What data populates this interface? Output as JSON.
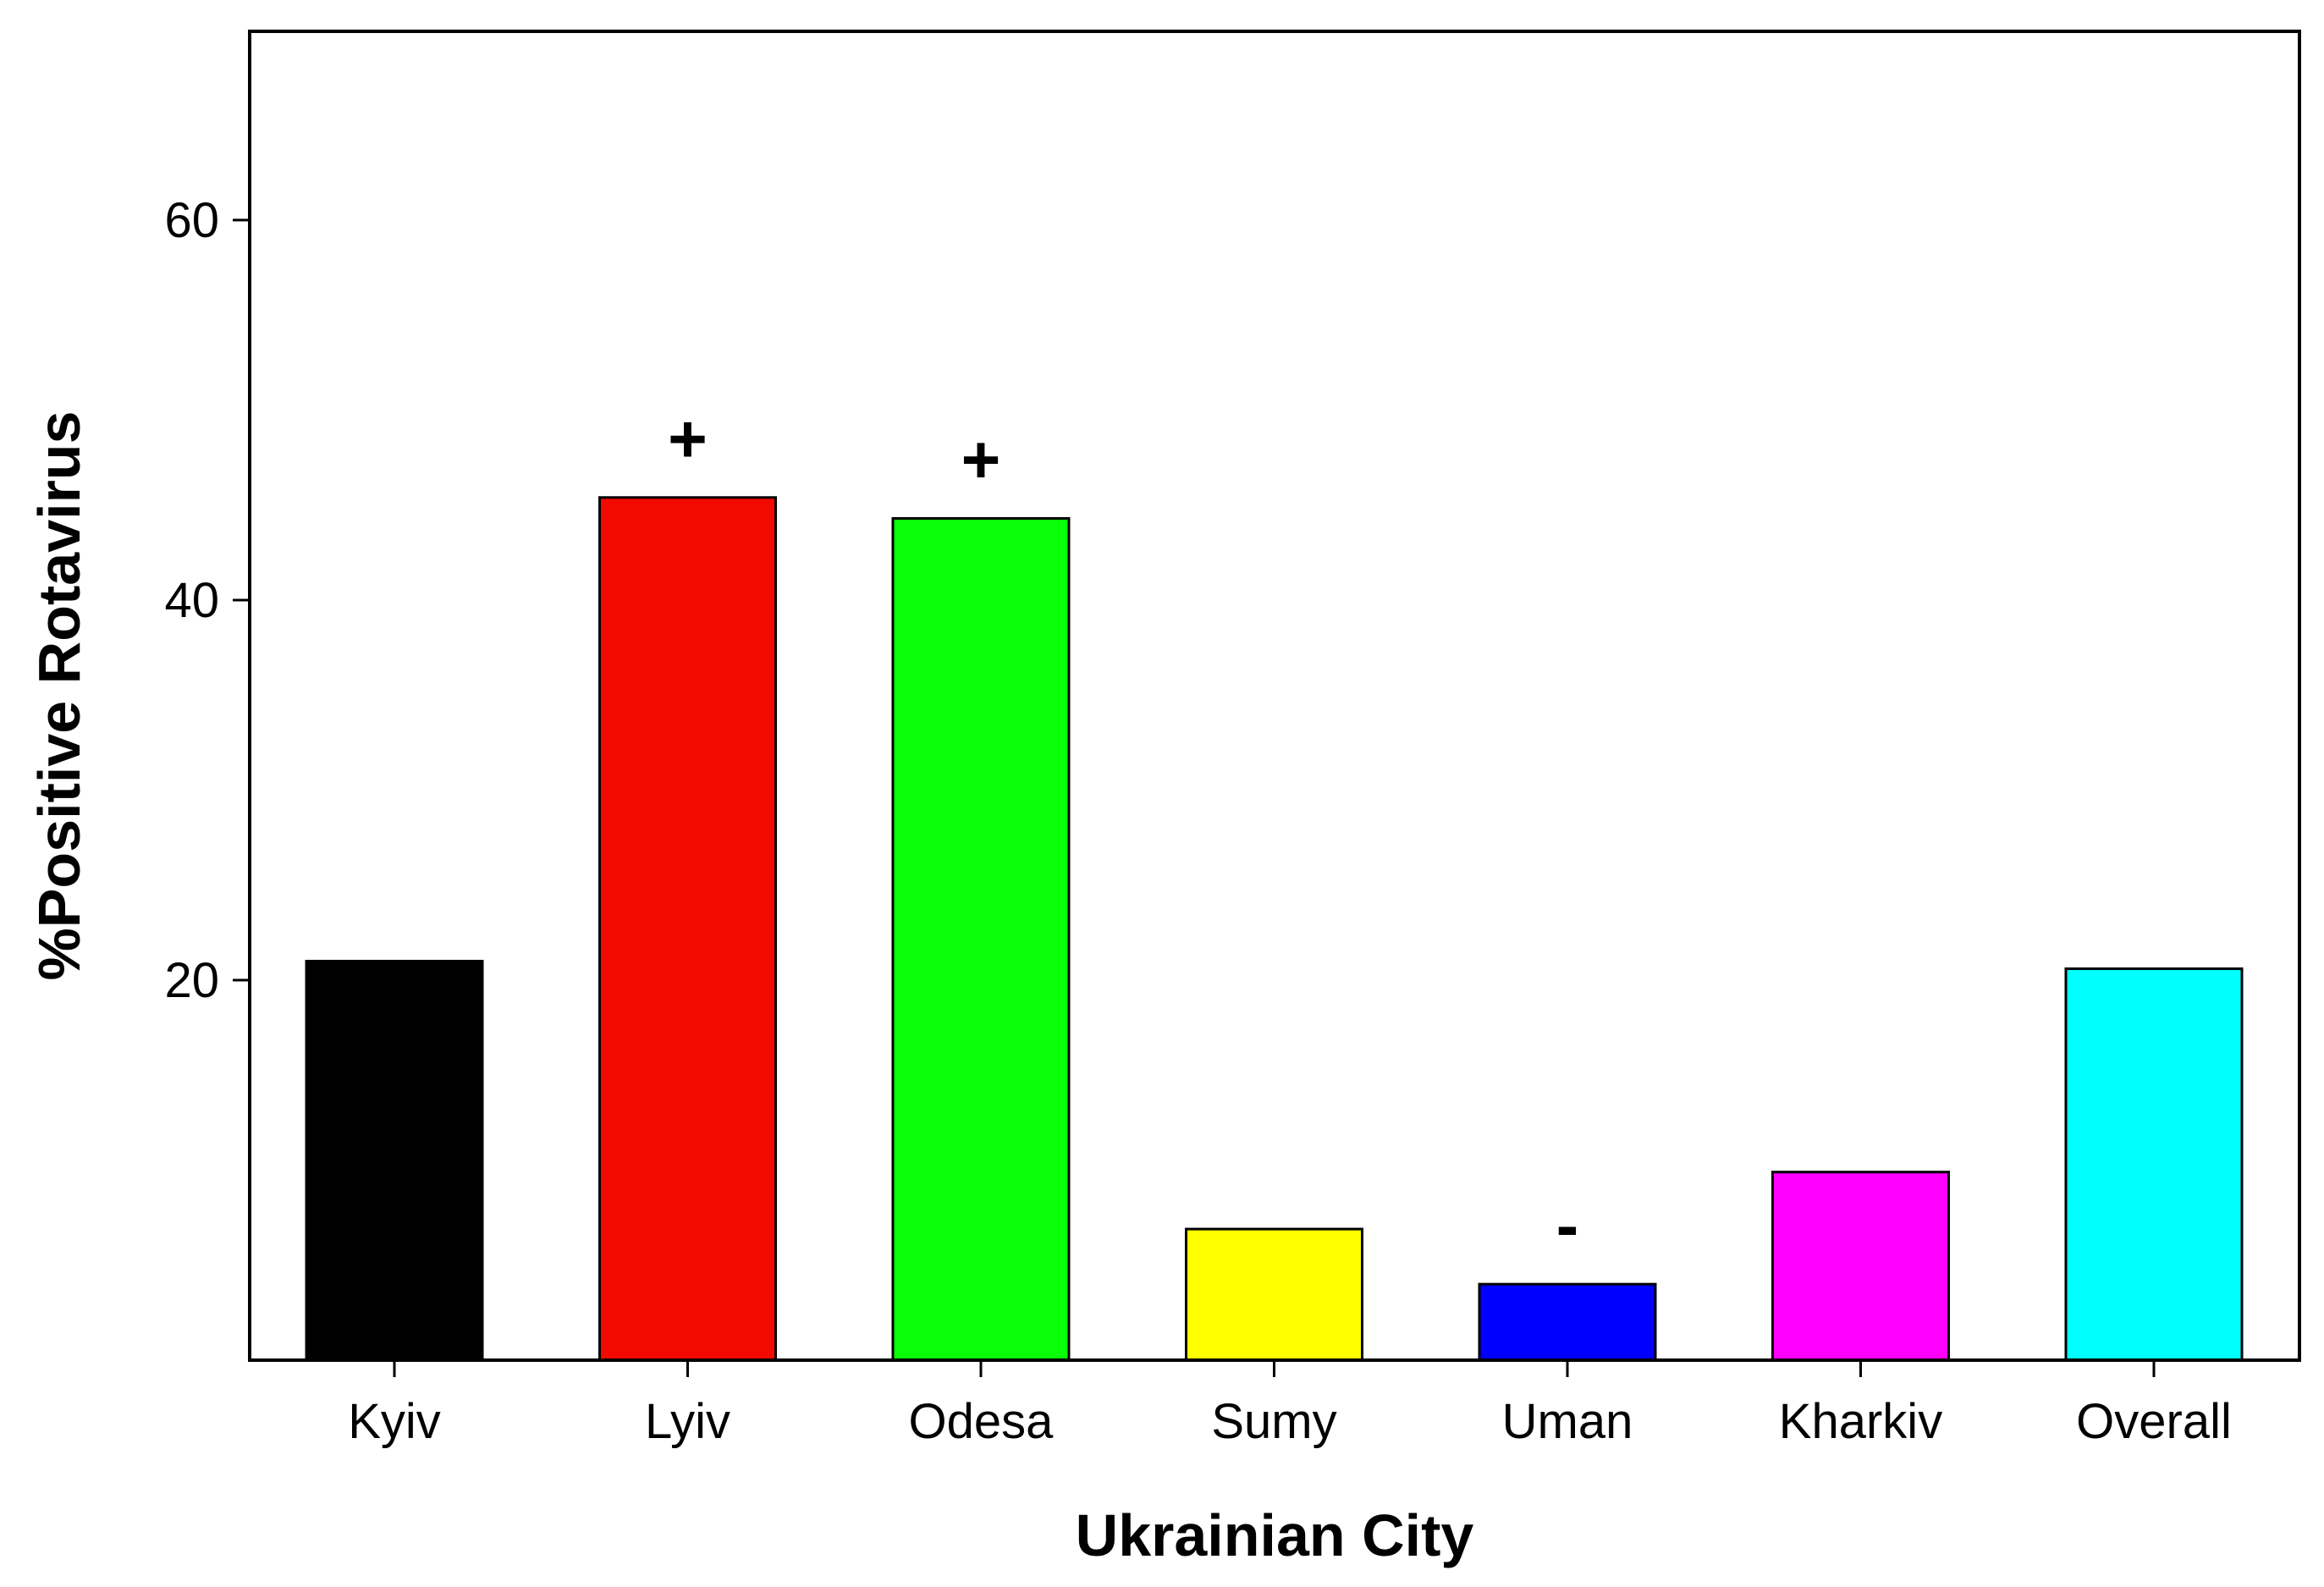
{
  "chart_data": {
    "type": "bar",
    "title": "",
    "xlabel": "Ukrainian City",
    "ylabel": "%Positive Rotavirus",
    "ylim": [
      0,
      70
    ],
    "yticks": [
      20,
      40,
      60
    ],
    "categories": [
      "Kyiv",
      "Lyiv",
      "Odesa",
      "Sumy",
      "Uman",
      "Kharkiv",
      "Overall"
    ],
    "values": [
      21.0,
      45.4,
      44.3,
      6.9,
      4.0,
      9.9,
      20.6
    ],
    "colors": [
      "#000000",
      "#f20a00",
      "#08ff08",
      "#ffff00",
      "#0000ff",
      "#ff00ff",
      "#00ffff"
    ],
    "annotations": [
      "",
      "+",
      "+",
      "",
      "-",
      "",
      ""
    ],
    "grid": false,
    "legend": "none"
  }
}
